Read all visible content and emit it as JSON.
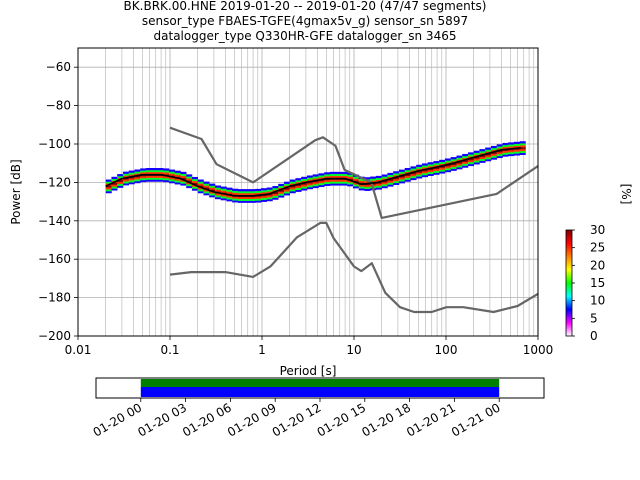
{
  "chart_data": {
    "type": "heatmap",
    "title_lines": [
      "BK.BRK.00.HNE   2019-01-20 -- 2019-01-20  (47/47 segments)",
      "sensor_type FBAES-TGFE(4gmax5v_g) sensor_sn 5897",
      "datalogger_type Q330HR-GFE datalogger_sn 3465"
    ],
    "xlabel": "Period [s]",
    "ylabel": "Power [dB]",
    "xscale": "log",
    "xlim": [
      0.01,
      1000
    ],
    "ylim": [
      -200,
      -50
    ],
    "x_ticks": [
      0.01,
      0.1,
      1,
      10,
      100,
      1000
    ],
    "x_tick_labels": [
      "0.01",
      "0.1",
      "1",
      "10",
      "100",
      "1000"
    ],
    "y_ticks": [
      -200,
      -180,
      -160,
      -140,
      -120,
      -100,
      -80,
      -60
    ],
    "y_tick_labels": [
      "−200",
      "−180",
      "−160",
      "−140",
      "−120",
      "−100",
      "−80",
      "−60"
    ],
    "grid": true,
    "colorbar": {
      "label": "[%]",
      "range": [
        0,
        30
      ],
      "ticks": [
        0,
        5,
        10,
        15,
        20,
        25,
        30
      ],
      "tick_labels": [
        "0",
        "5",
        "10",
        "15",
        "20",
        "25",
        "30"
      ],
      "colors": [
        "#ffffff",
        "#ff00ff",
        "#0000ff",
        "#00ffff",
        "#00ff00",
        "#ffff00",
        "#ff8000",
        "#ff0000",
        "#800000"
      ]
    },
    "series": [
      {
        "role": "new_high_noise_model",
        "color": "#666666",
        "x": [
          0.1,
          0.22,
          0.32,
          0.8,
          3.8,
          4.6,
          6.3,
          7.9,
          15.4,
          20,
          354.8,
          1000
        ],
        "y": [
          -91.5,
          -97.4,
          -110.5,
          -120,
          -98,
          -96.5,
          -101,
          -113.5,
          -120,
          -138.5,
          -126,
          -111.5
        ]
      },
      {
        "role": "new_low_noise_model",
        "color": "#666666",
        "x": [
          0.1,
          0.17,
          0.4,
          0.8,
          1.24,
          2.4,
          4.3,
          5,
          6,
          10,
          12,
          15.6,
          21.9,
          31.6,
          45,
          70,
          101,
          154,
          328,
          600,
          1000
        ],
        "y": [
          -168,
          -166.7,
          -166.7,
          -169.2,
          -163.7,
          -148.6,
          -141.1,
          -141.1,
          -149,
          -163.8,
          -166.2,
          -162.1,
          -177.5,
          -185,
          -187.5,
          -187.5,
          -185,
          -185,
          -187.5,
          -184.4,
          -178
        ]
      },
      {
        "role": "mode",
        "color": "#000000",
        "x": [
          0.02,
          0.03,
          0.05,
          0.08,
          0.13,
          0.2,
          0.3,
          0.5,
          0.8,
          1.2,
          2,
          3,
          5,
          8,
          12,
          18,
          30,
          50,
          80,
          120,
          200,
          400,
          650
        ],
        "y": [
          -122,
          -118,
          -116,
          -116,
          -118,
          -122,
          -125,
          -127,
          -127,
          -126,
          -122,
          -120,
          -118,
          -118,
          -121,
          -120,
          -117,
          -114,
          -112,
          -110,
          -107,
          -103,
          -102
        ]
      }
    ]
  },
  "timeline": {
    "tick_labels": [
      "01-20 00",
      "01-20 03",
      "01-20 06",
      "01-20 09",
      "01-20 12",
      "01-20 15",
      "01-20 18",
      "01-20 21",
      "01-21 00"
    ],
    "data_color": "#008000",
    "psd_color": "#0000ff",
    "range_hours": [
      -3,
      27
    ],
    "data_hours": [
      0,
      24
    ]
  }
}
